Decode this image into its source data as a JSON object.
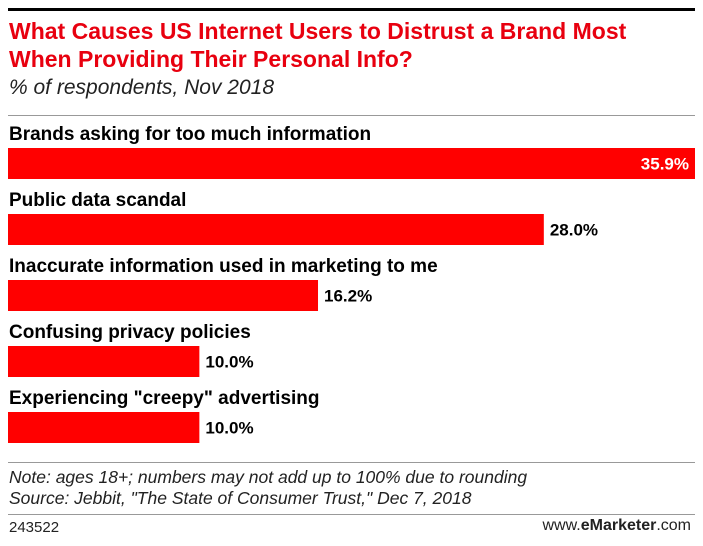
{
  "chart_data": {
    "type": "bar",
    "orientation": "horizontal",
    "title": "What Causes US Internet Users to Distrust a Brand Most When Providing Their Personal Info?",
    "subtitle": "% of respondents, Nov 2018",
    "categories": [
      "Brands asking for too much information",
      "Public data scandal",
      "Inaccurate information used in marketing to me",
      "Confusing privacy policies",
      "Experiencing \"creepy\" advertising"
    ],
    "values": [
      35.9,
      28.0,
      16.2,
      10.0,
      10.0
    ],
    "value_labels": [
      "35.9%",
      "28.0%",
      "16.2%",
      "10.0%",
      "10.0%"
    ],
    "bar_color": "#ff0000",
    "grid": false,
    "legend": "none"
  },
  "notes": {
    "note": "Note: ages 18+; numbers may not add up to 100% due to rounding",
    "source": "Source: Jebbit, \"The State of Consumer Trust,\" Dec 7, 2018"
  },
  "footer": {
    "chart_id": "243522",
    "brand_prefix": "www.",
    "brand_name": "eMarketer",
    "brand_suffix": ".com"
  },
  "colors": {
    "title": "#e8000f",
    "bar": "#ff0000"
  }
}
